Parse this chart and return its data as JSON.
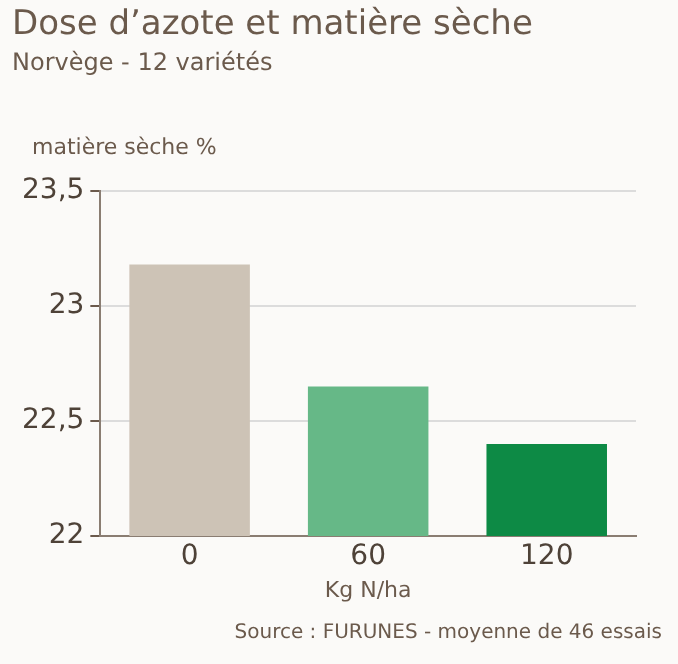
{
  "chart_data": {
    "type": "bar",
    "title": "Dose d’azote et matière sèche",
    "subtitle": "Norvège - 12 variétés",
    "ylabel": "matière sèche %",
    "xlabel": "Kg N/ha",
    "categories": [
      "0",
      "60",
      "120"
    ],
    "values": [
      23.18,
      22.65,
      22.4
    ],
    "colors": [
      "#cdc3b6",
      "#66b887",
      "#0d8a45"
    ],
    "ylim": [
      22,
      23.5
    ],
    "yticks": [
      22,
      {
        "value": 22.5,
        "label": "22,5"
      },
      23,
      {
        "value": 23.5,
        "label": "23,5"
      }
    ],
    "grid": "y",
    "annotations": [
      "Source : FURUNES - moyenne de 46 essais"
    ]
  }
}
